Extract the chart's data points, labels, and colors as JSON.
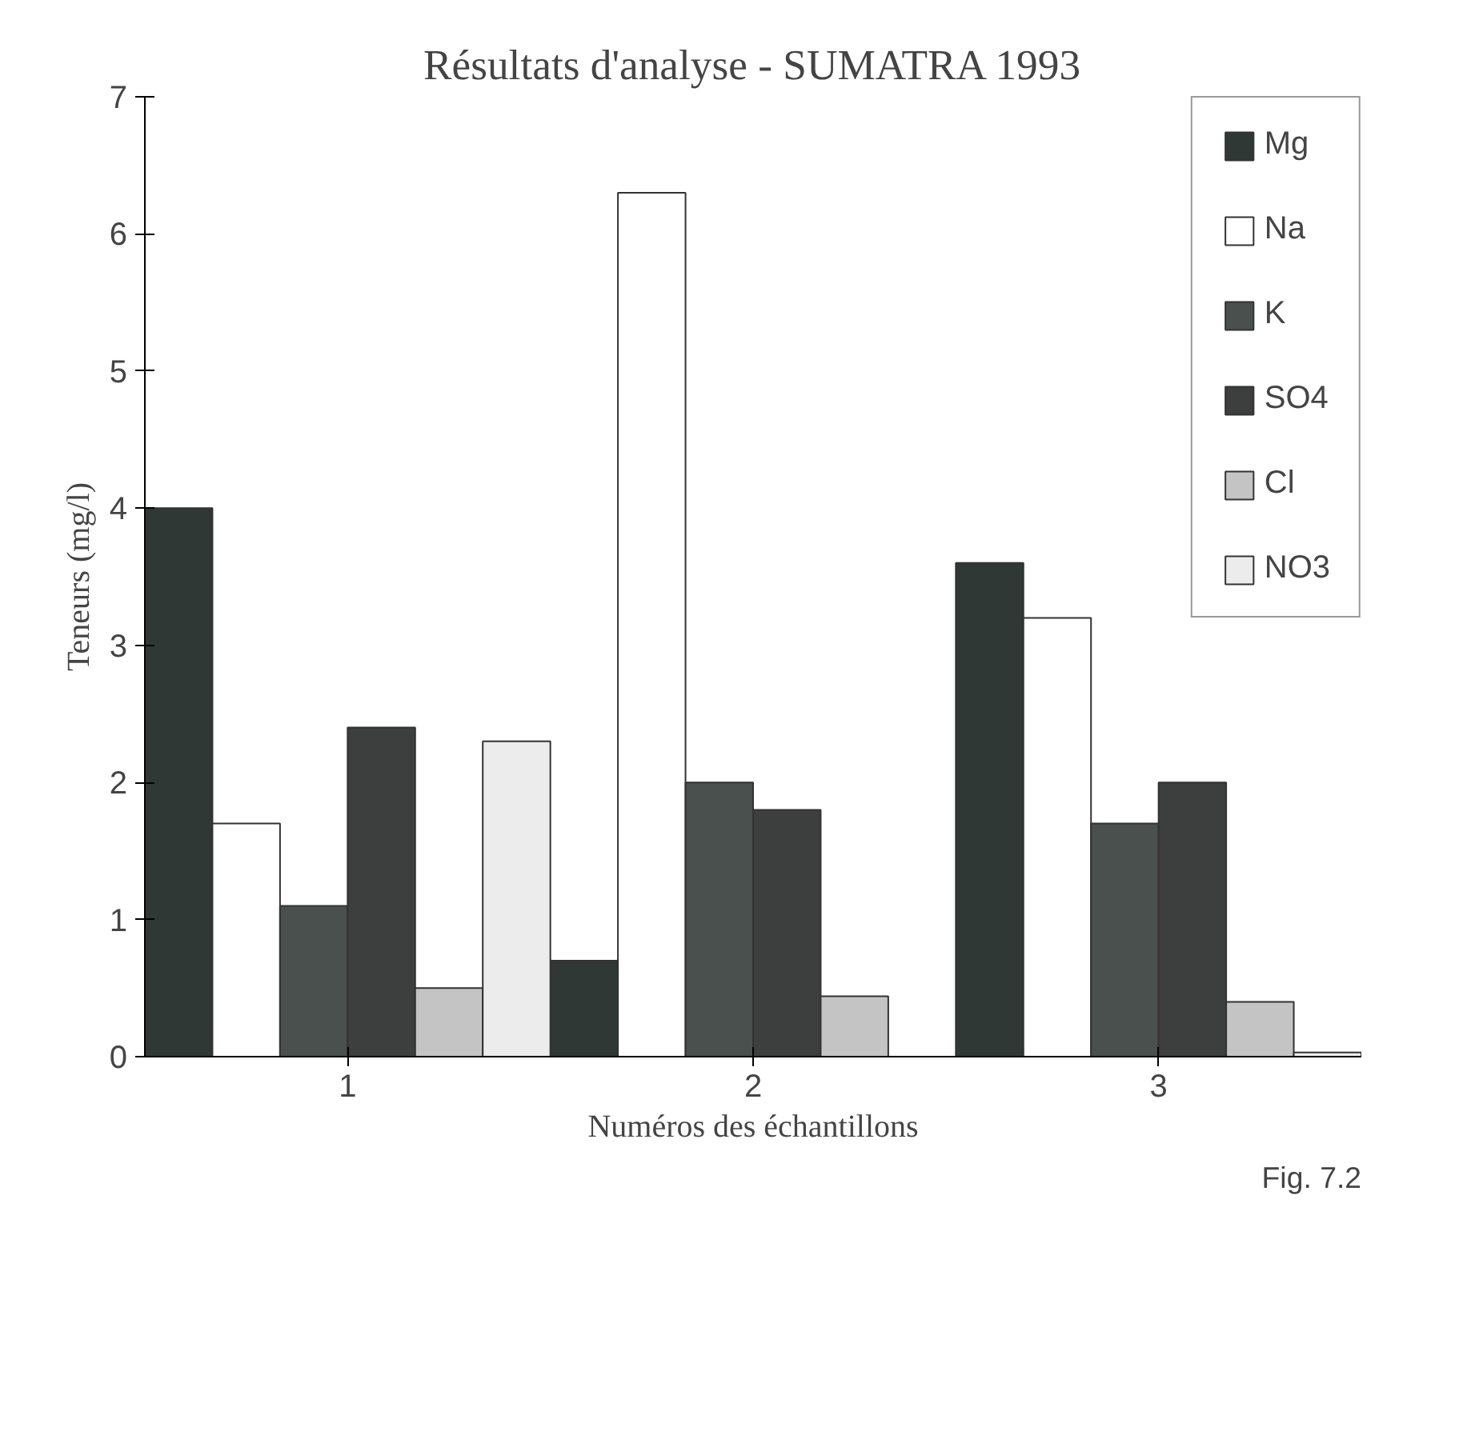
{
  "chart_data": {
    "type": "bar",
    "title": "Résultats d'analyse - SUMATRA 1993",
    "xlabel": "Numéros des échantillons",
    "ylabel": "Teneurs (mg/l)",
    "categories": [
      "1",
      "2",
      "3"
    ],
    "series": [
      {
        "name": "Mg",
        "color": "#2f3834",
        "values": [
          4.0,
          0.7,
          3.6
        ]
      },
      {
        "name": "Na",
        "color": "#ffffff",
        "values": [
          1.7,
          6.3,
          3.2
        ]
      },
      {
        "name": "K",
        "color": "#4a504d",
        "values": [
          1.1,
          2.0,
          1.7
        ]
      },
      {
        "name": "SO4",
        "color": "#3c3f3d",
        "values": [
          2.4,
          1.8,
          2.0
        ]
      },
      {
        "name": "Cl",
        "color": "#c4c4c4",
        "values": [
          0.5,
          0.44,
          0.4
        ]
      },
      {
        "name": "NO3",
        "color": "#ececec",
        "values": [
          2.3,
          null,
          0.03
        ]
      }
    ],
    "ylim": [
      0,
      7
    ],
    "yticks": [
      0,
      1,
      2,
      3,
      4,
      5,
      6,
      7
    ],
    "grid": false,
    "legend": "top right",
    "annotations": [
      "Fig. 7.2"
    ]
  }
}
